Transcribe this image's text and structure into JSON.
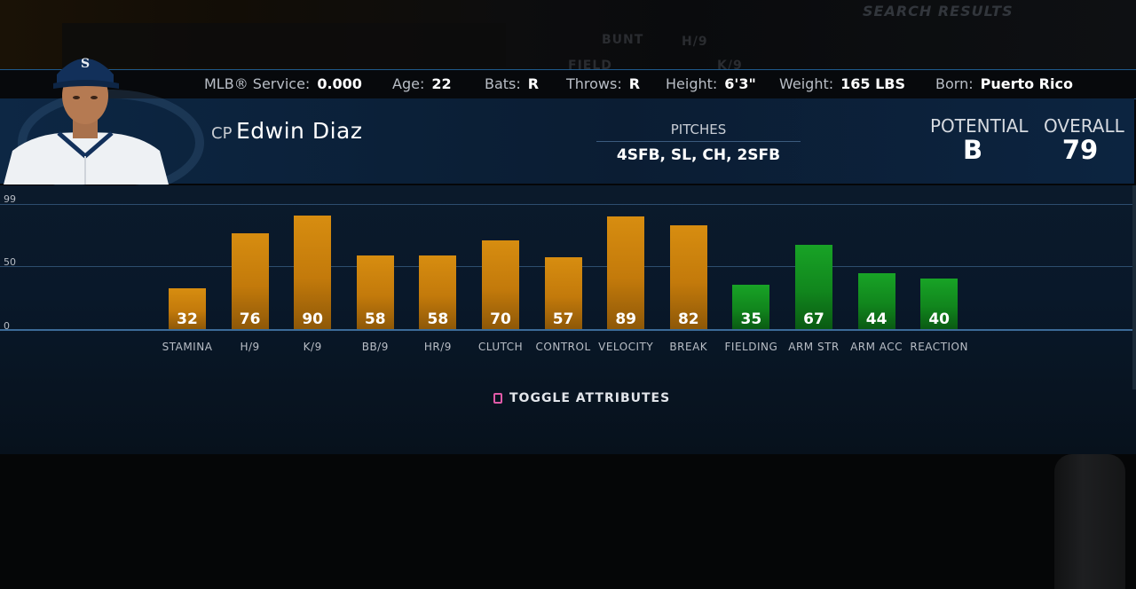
{
  "background": {
    "faint_labels": [
      "BUNT",
      "H/9",
      "FIELD",
      "K/9"
    ],
    "search_results": "SEARCH RESULTS"
  },
  "info_bar": {
    "service_label": "MLB® Service:",
    "service_value": "0.000",
    "age_label": "Age:",
    "age_value": "22",
    "bats_label": "Bats:",
    "bats_value": "R",
    "throws_label": "Throws:",
    "throws_value": "R",
    "height_label": "Height:",
    "height_value": "6'3\"",
    "weight_label": "Weight:",
    "weight_value": "165 LBS",
    "born_label": "Born:",
    "born_value": "Puerto Rico"
  },
  "player": {
    "position": "CP",
    "name": "Edwin  Diaz",
    "pitches_label": "PITCHES",
    "pitches_value": "4SFB, SL, CH, 2SFB",
    "potential_label": "POTENTIAL",
    "potential_value": "B",
    "overall_label": "OVERALL",
    "overall_value": "79"
  },
  "chart_data": {
    "type": "bar",
    "ylim": [
      0,
      99
    ],
    "y_ticks": [
      "99",
      "50",
      "0"
    ],
    "categories": [
      "STAMINA",
      "H/9",
      "K/9",
      "BB/9",
      "HR/9",
      "CLUTCH",
      "CONTROL",
      "VELOCITY",
      "BREAK",
      "FIELDING",
      "ARM STR",
      "ARM ACC",
      "REACTION"
    ],
    "values": [
      32,
      76,
      90,
      58,
      58,
      70,
      57,
      89,
      82,
      35,
      67,
      44,
      40
    ],
    "colors": [
      "orange",
      "orange",
      "orange",
      "orange",
      "orange",
      "orange",
      "orange",
      "orange",
      "orange",
      "green",
      "green",
      "green",
      "green"
    ],
    "color_hex": {
      "orange": "#c8800c",
      "green": "#13921f"
    }
  },
  "toggle": {
    "label": "TOGGLE ATTRIBUTES",
    "icon": "square-button-icon",
    "icon_color": "#e05aa8"
  }
}
